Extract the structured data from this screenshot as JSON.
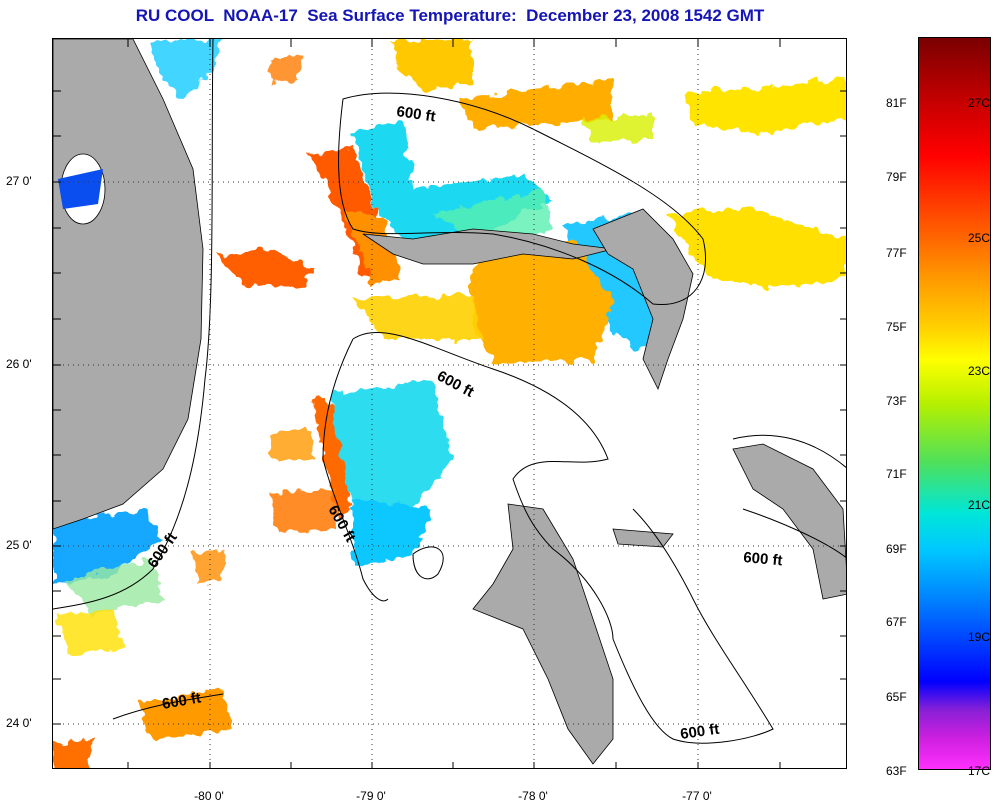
{
  "title": "RU COOL  NOAA-17  Sea Surface Temperature:  December 23, 2008 1542 GMT",
  "lat_ticks": [
    "27 0'",
    "26 0'",
    "25 0'",
    "24 0'"
  ],
  "lon_ticks": [
    "-80 0'",
    "-79 0'",
    "-78 0'",
    "-77 0'"
  ],
  "contour_labels": [
    "600 ft",
    "600 ft",
    "600 ft",
    "600 ft",
    "600 ft",
    "600 ft",
    "600 ft"
  ],
  "colorbar": {
    "fahrenheit": [
      "81F",
      "79F",
      "77F",
      "75F",
      "73F",
      "71F",
      "69F",
      "67F",
      "65F",
      "63F"
    ],
    "celsius": [
      "27C",
      "25C",
      "23C",
      "21C",
      "19C",
      "17C"
    ]
  },
  "colors": {
    "land": "#aaaaaa",
    "title": "#1515b5"
  }
}
